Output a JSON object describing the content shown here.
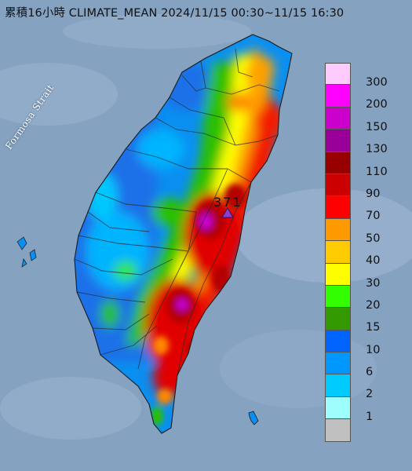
{
  "title": "累積16小時 CLIMATE_MEAN 2024/11/15 00:30~11/15 16:30",
  "map": {
    "strait_label": "Formosa Strait",
    "max_value_label": "371",
    "sea_color": "#8aa6c4"
  },
  "legend": {
    "items": [
      {
        "label": "300",
        "color": "#fecbfe"
      },
      {
        "label": "200",
        "color": "#fe00fe"
      },
      {
        "label": "150",
        "color": "#cc00cc"
      },
      {
        "label": "130",
        "color": "#990099"
      },
      {
        "label": "110",
        "color": "#980000"
      },
      {
        "label": "90",
        "color": "#cc0000"
      },
      {
        "label": "70",
        "color": "#fe0000"
      },
      {
        "label": "50",
        "color": "#fe9900"
      },
      {
        "label": "40",
        "color": "#fecb00"
      },
      {
        "label": "30",
        "color": "#fefe00"
      },
      {
        "label": "20",
        "color": "#32fe00"
      },
      {
        "label": "15",
        "color": "#339900"
      },
      {
        "label": "10",
        "color": "#0065fe"
      },
      {
        "label": "6",
        "color": "#0098fe"
      },
      {
        "label": "2",
        "color": "#00cbfe"
      },
      {
        "label": "1",
        "color": "#9efefe"
      },
      {
        "label": "",
        "color": "#c0c0c0"
      }
    ]
  }
}
